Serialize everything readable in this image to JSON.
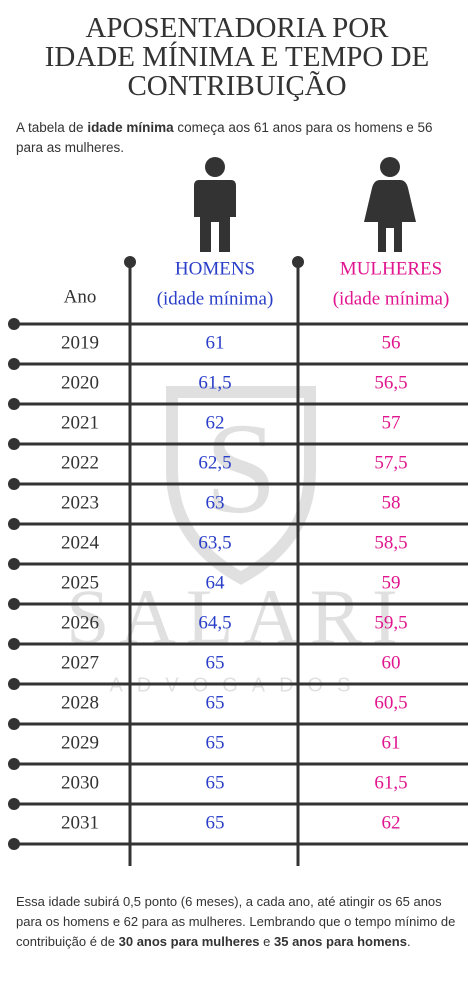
{
  "header": {
    "title_lines": [
      "APOSENTADORIA POR",
      "IDADE MÍNIMA E TEMPO DE",
      "CONTRIBUIÇÃO"
    ],
    "intro": [
      "A tabela de ",
      "idade mínima",
      " começa aos 61 anos para os homens e 56 para as mulheres."
    ]
  },
  "table": {
    "columns": [
      "Ano",
      "HOMENS",
      "(idade mínima)",
      "MULHERES",
      "(idade mínima)"
    ],
    "rows": [
      [
        "2019",
        "61",
        "56"
      ],
      [
        "2020",
        "61,5",
        "56,5"
      ],
      [
        "2021",
        "62",
        "57"
      ],
      [
        "2022",
        "62,5",
        "57,5"
      ],
      [
        "2023",
        "63",
        "58"
      ],
      [
        "2024",
        "63,5",
        "58,5"
      ],
      [
        "2025",
        "64",
        "59"
      ],
      [
        "2026",
        "64,5",
        "59,5"
      ],
      [
        "2027",
        "65",
        "60"
      ],
      [
        "2028",
        "65",
        "60,5"
      ],
      [
        "2029",
        "65",
        "61"
      ],
      [
        "2030",
        "65",
        "61,5"
      ],
      [
        "2031",
        "65",
        "62"
      ]
    ]
  },
  "watermark": {
    "logo": "S",
    "name": "SALARI",
    "tagline": "ADVOGADOS"
  },
  "footer": {
    "text": [
      "Essa idade subirá 0,5 ponto (6 meses), a cada ano, até atingir os 65 anos para os homens e 62 para as mulheres. Lembrando que o tempo mínimo de contribuição é de ",
      "30 anos para mulheres",
      " e ",
      "35 anos para homens",
      "."
    ]
  }
}
